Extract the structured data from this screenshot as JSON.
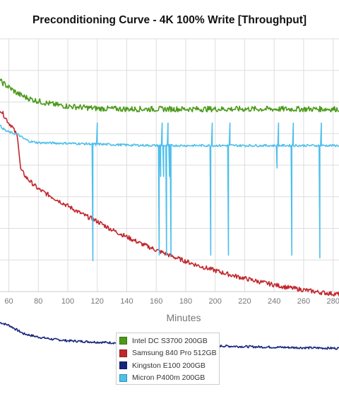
{
  "chart_data": {
    "type": "line",
    "title": "Preconditioning Curve - 4K 100% Write [Throughput]",
    "xlabel": "Minutes",
    "ylabel": "",
    "x_ticks": [
      60,
      80,
      100,
      120,
      140,
      160,
      180,
      200,
      220,
      240,
      260,
      280
    ],
    "xlim": [
      54,
      284
    ],
    "ylim": [
      0,
      9
    ],
    "grid": true,
    "legend_position": "bottom",
    "series": [
      {
        "name": "Intel DC S3700 200GB",
        "color": "#4c9a1a",
        "points": [
          [
            54,
            7.5
          ],
          [
            58,
            7.35
          ],
          [
            62,
            7.2
          ],
          [
            66,
            7.05
          ],
          [
            70,
            6.95
          ],
          [
            75,
            6.85
          ],
          [
            80,
            6.78
          ],
          [
            85,
            6.72
          ],
          [
            90,
            6.67
          ],
          [
            95,
            6.63
          ],
          [
            100,
            6.6
          ],
          [
            110,
            6.56
          ],
          [
            120,
            6.52
          ],
          [
            140,
            6.5
          ],
          [
            160,
            6.5
          ],
          [
            180,
            6.5
          ],
          [
            200,
            6.5
          ],
          [
            220,
            6.5
          ],
          [
            240,
            6.5
          ],
          [
            260,
            6.5
          ],
          [
            284,
            6.5
          ]
        ],
        "noise": 0.1
      },
      {
        "name": "Samsung 840 Pro 512GB",
        "color": "#c1272d",
        "points": [
          [
            54,
            6.5
          ],
          [
            60,
            6.0
          ],
          [
            62,
            5.9
          ],
          [
            66,
            5.5
          ],
          [
            68,
            4.35
          ],
          [
            72,
            4.05
          ],
          [
            76,
            3.85
          ],
          [
            80,
            3.65
          ],
          [
            90,
            3.35
          ],
          [
            100,
            3.05
          ],
          [
            110,
            2.75
          ],
          [
            120,
            2.5
          ],
          [
            130,
            2.2
          ],
          [
            140,
            1.95
          ],
          [
            150,
            1.7
          ],
          [
            160,
            1.48
          ],
          [
            170,
            1.27
          ],
          [
            180,
            1.08
          ],
          [
            190,
            0.9
          ],
          [
            200,
            0.75
          ],
          [
            210,
            0.6
          ],
          [
            220,
            0.47
          ],
          [
            230,
            0.35
          ],
          [
            240,
            0.24
          ],
          [
            250,
            0.14
          ],
          [
            260,
            0.06
          ],
          [
            270,
            -0.02
          ],
          [
            284,
            -0.1
          ]
        ],
        "noise": 0.08
      },
      {
        "name": "Kingston E100 200GB",
        "color": "#17257d",
        "points": [
          [
            54,
            -1.1
          ],
          [
            60,
            -1.2
          ],
          [
            65,
            -1.35
          ],
          [
            70,
            -1.5
          ],
          [
            80,
            -1.62
          ],
          [
            90,
            -1.7
          ],
          [
            100,
            -1.75
          ],
          [
            120,
            -1.8
          ],
          [
            140,
            -1.84
          ],
          [
            160,
            -1.87
          ],
          [
            180,
            -1.9
          ],
          [
            200,
            -1.93
          ],
          [
            220,
            -1.96
          ],
          [
            240,
            -1.98
          ],
          [
            260,
            -2.0
          ],
          [
            284,
            -2.02
          ]
        ],
        "noise": 0.04
      },
      {
        "name": "Micron P400m 200GB",
        "color": "#4fbfec",
        "points": [
          [
            54,
            5.9
          ],
          [
            58,
            5.72
          ],
          [
            62,
            5.65
          ],
          [
            66,
            5.6
          ],
          [
            70,
            5.45
          ],
          [
            74,
            5.35
          ],
          [
            80,
            5.3
          ],
          [
            100,
            5.28
          ],
          [
            120,
            5.25
          ],
          [
            140,
            5.22
          ],
          [
            160,
            5.2
          ],
          [
            200,
            5.2
          ],
          [
            240,
            5.2
          ],
          [
            284,
            5.2
          ]
        ],
        "noise": 0.04,
        "spikes": [
          [
            117,
            1.1
          ],
          [
            119,
            5.2
          ],
          [
            120,
            6.0
          ],
          [
            162,
            1.3
          ],
          [
            163,
            4.1
          ],
          [
            164,
            6.0
          ],
          [
            165,
            4.1
          ],
          [
            167,
            1.3
          ],
          [
            168,
            6.0
          ],
          [
            169,
            4.1
          ],
          [
            170,
            1.3
          ],
          [
            197,
            1.3
          ],
          [
            198,
            6.0
          ],
          [
            209,
            1.3
          ],
          [
            210,
            6.0
          ],
          [
            242,
            4.4
          ],
          [
            243,
            6.0
          ],
          [
            252,
            1.3
          ],
          [
            253,
            6.0
          ],
          [
            271,
            1.2
          ],
          [
            272,
            6.0
          ]
        ]
      }
    ]
  }
}
